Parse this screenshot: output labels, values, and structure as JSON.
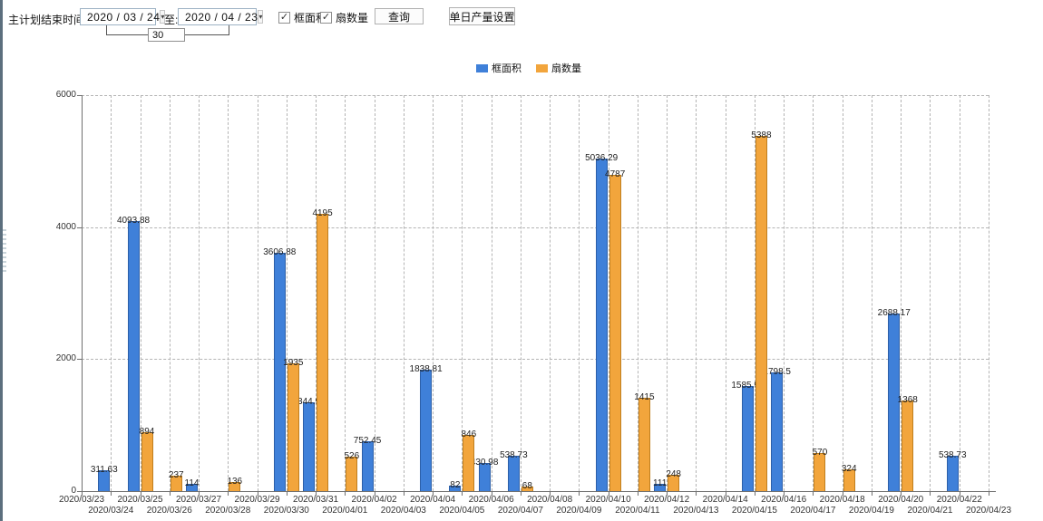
{
  "toolbar": {
    "plan_end_label": "主计划结束时间:",
    "date_from": "2020 / 03 / 24",
    "to_label": "至:",
    "date_to": "2020 / 04 / 23",
    "days_between": "30",
    "checkbox_frame_area": {
      "label": "框面积",
      "checked": true
    },
    "checkbox_fan_count": {
      "label": "扇数量",
      "checked": true
    },
    "query_button": "查询",
    "daily_output_button": "单日产量设置",
    "check_glyph": "✓",
    "dropdown_glyph": "▾"
  },
  "colors": {
    "frame_area_bar": "#3f80d9",
    "frame_area_edge": "#2c5fa8",
    "fan_count_bar": "#f2a53c",
    "fan_count_edge": "#c07f1f",
    "axis": "#707070",
    "grid": "#b4b4b4"
  },
  "chart_data": {
    "type": "bar",
    "title": "",
    "xlabel": "",
    "ylabel": "",
    "ylim": [
      0,
      6000
    ],
    "yticks": [
      0,
      2000,
      4000,
      6000
    ],
    "grid": true,
    "legend_position": "top-center",
    "categories": [
      "2020/03/23",
      "2020/03/24",
      "2020/03/25",
      "2020/03/26",
      "2020/03/27",
      "2020/03/28",
      "2020/03/29",
      "2020/03/30",
      "2020/03/31",
      "2020/04/01",
      "2020/04/02",
      "2020/04/03",
      "2020/04/04",
      "2020/04/05",
      "2020/04/06",
      "2020/04/07",
      "2020/04/08",
      "2020/04/09",
      "2020/04/10",
      "2020/04/11",
      "2020/04/12",
      "2020/04/13",
      "2020/04/14",
      "2020/04/15",
      "2020/04/16",
      "2020/04/17",
      "2020/04/18",
      "2020/04/19",
      "2020/04/20",
      "2020/04/21",
      "2020/04/22",
      "2020/04/23"
    ],
    "series": [
      {
        "name": "框面积",
        "color": "#3f80d9",
        "values": [
          null,
          311.63,
          4093.88,
          null,
          114,
          null,
          null,
          3606.88,
          1344.95,
          null,
          752.45,
          null,
          1838.81,
          82,
          430.98,
          538.73,
          null,
          null,
          5036.29,
          null,
          111,
          null,
          null,
          1585.96,
          1798.5,
          null,
          null,
          null,
          2688.17,
          null,
          538.73,
          null
        ]
      },
      {
        "name": "扇数量",
        "color": "#f2a53c",
        "values": [
          null,
          null,
          894,
          237,
          null,
          136,
          null,
          1935,
          4195,
          526,
          null,
          null,
          null,
          846,
          null,
          68,
          null,
          null,
          4787,
          1415,
          248,
          null,
          null,
          5388,
          null,
          570,
          324,
          null,
          1368,
          null,
          null,
          null
        ]
      }
    ]
  }
}
